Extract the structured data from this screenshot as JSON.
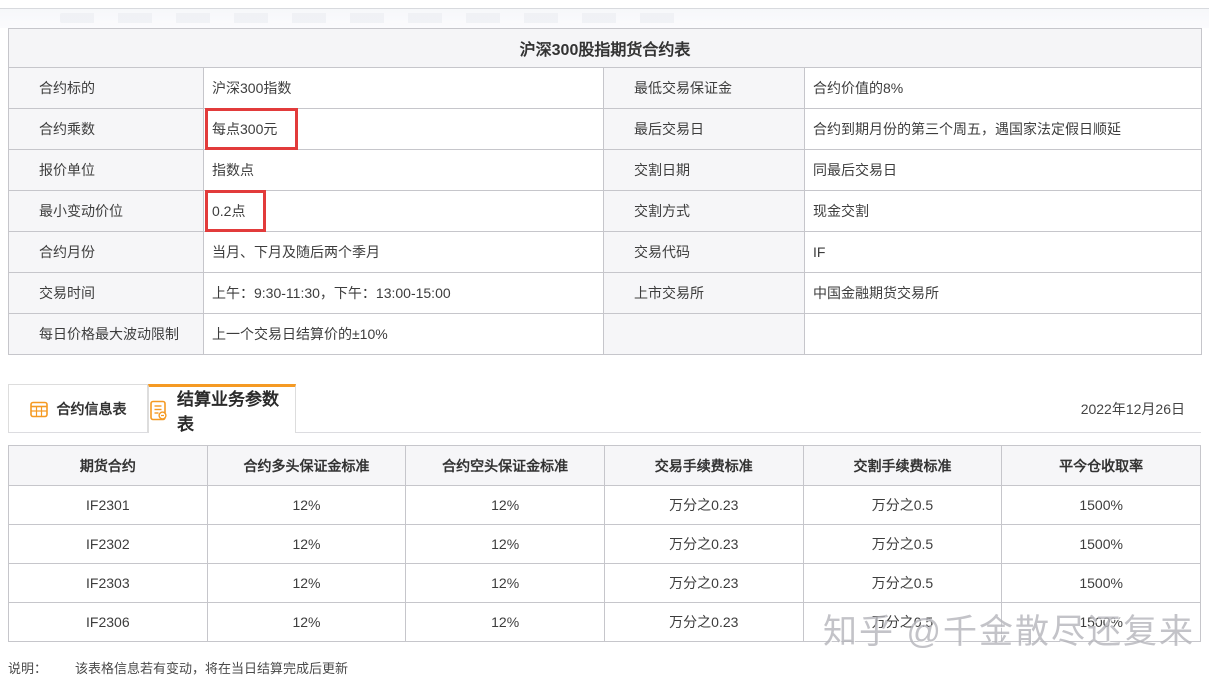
{
  "colors": {
    "accent_orange": "#f59a23",
    "highlight_red": "#e23b3b"
  },
  "spec_table": {
    "title": "沪深300股指期货合约表",
    "rows": [
      {
        "label1": "合约标的",
        "value1": "沪深300指数",
        "highlight1": false,
        "label2": "最低交易保证金",
        "value2": "合约价值的8%"
      },
      {
        "label1": "合约乘数",
        "value1": "每点300元",
        "highlight1": true,
        "label2": "最后交易日",
        "value2": "合约到期月份的第三个周五，遇国家法定假日顺延"
      },
      {
        "label1": "报价单位",
        "value1": "指数点",
        "highlight1": false,
        "label2": "交割日期",
        "value2": "同最后交易日"
      },
      {
        "label1": "最小变动价位",
        "value1": "0.2点",
        "highlight1": true,
        "label2": "交割方式",
        "value2": "现金交割"
      },
      {
        "label1": "合约月份",
        "value1": "当月、下月及随后两个季月",
        "highlight1": false,
        "label2": "交易代码",
        "value2": "IF"
      },
      {
        "label1": "交易时间",
        "value1": "上午：9:30-11:30，下午：13:00-15:00",
        "highlight1": false,
        "label2": "上市交易所",
        "value2": "中国金融期货交易所"
      },
      {
        "label1": "每日价格最大波动限制",
        "value1": "上一个交易日结算价的±10%",
        "highlight1": false,
        "label2": "",
        "value2": ""
      }
    ]
  },
  "tabs": {
    "items": [
      {
        "label": "合约信息表",
        "icon": "calendar-icon",
        "active": false
      },
      {
        "label": "结算业务参数表",
        "icon": "settlement-doc-icon",
        "active": true
      }
    ],
    "date": "2022年12月26日"
  },
  "params_table": {
    "headers": [
      "期货合约",
      "合约多头保证金标准",
      "合约空头保证金标准",
      "交易手续费标准",
      "交割手续费标准",
      "平今仓收取率"
    ],
    "rows": [
      [
        "IF2301",
        "12%",
        "12%",
        "万分之0.23",
        "万分之0.5",
        "1500%"
      ],
      [
        "IF2302",
        "12%",
        "12%",
        "万分之0.23",
        "万分之0.5",
        "1500%"
      ],
      [
        "IF2303",
        "12%",
        "12%",
        "万分之0.23",
        "万分之0.5",
        "1500%"
      ],
      [
        "IF2306",
        "12%",
        "12%",
        "万分之0.23",
        "万分之0.5",
        "1500%"
      ]
    ]
  },
  "note": {
    "prefix": "说明：",
    "text": "该表格信息若有变动，将在当日结算完成后更新"
  },
  "watermark": "知乎 @千金散尽还复来"
}
